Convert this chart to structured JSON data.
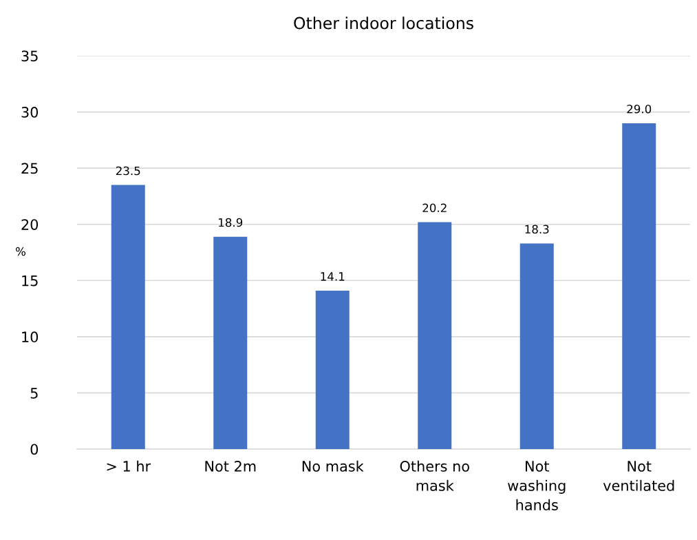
{
  "chart_data": {
    "type": "bar",
    "title": "Other indoor locations",
    "ylabel": "%",
    "categories": [
      "> 1 hr",
      "Not 2m",
      "No mask",
      "Others no\nmask",
      "Not\nwashing\nhands",
      "Not\nventilated"
    ],
    "values": [
      23.5,
      18.9,
      14.1,
      20.2,
      18.3,
      29.0
    ],
    "value_labels": [
      "23.5",
      "18.9",
      "14.1",
      "20.2",
      "18.3",
      "29.0"
    ],
    "color": "#4472c4",
    "ylim": [
      0,
      35
    ],
    "yticks": [
      0,
      5,
      10,
      15,
      20,
      25,
      30,
      35
    ],
    "grid": "y"
  }
}
